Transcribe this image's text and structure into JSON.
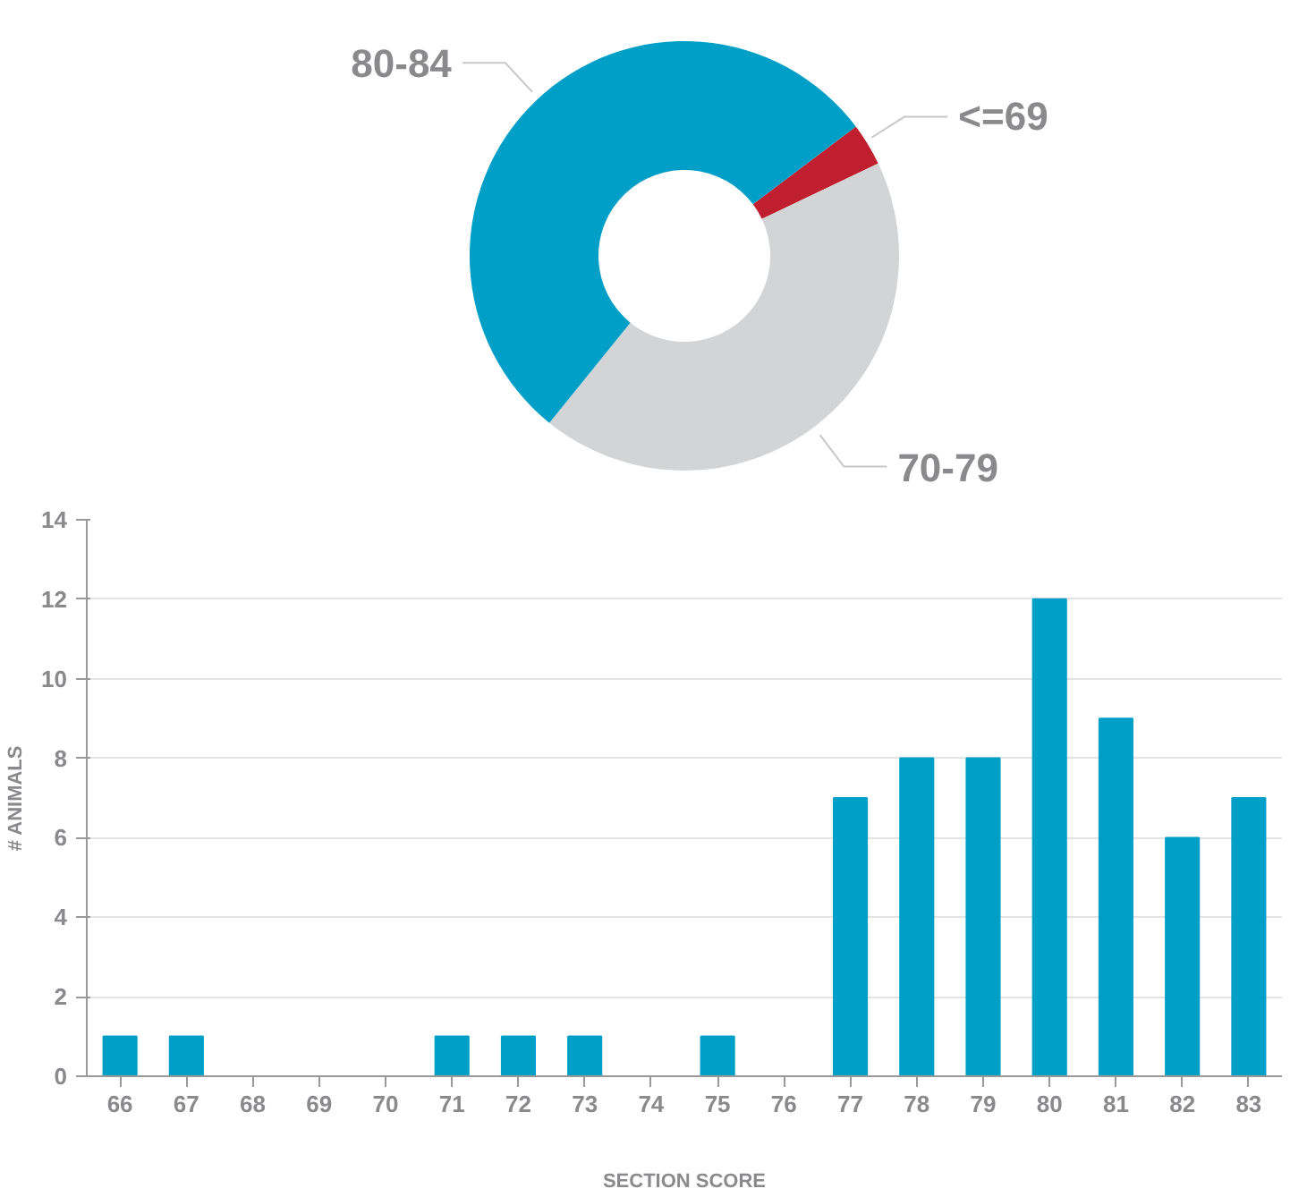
{
  "chart_data": [
    {
      "type": "donut",
      "categories": [
        "<=69",
        "70-79",
        "80-84"
      ],
      "values": [
        3.2,
        42.9,
        53.9
      ],
      "colors": [
        "#c01f2f",
        "#d3d4d6",
        "#009fc7"
      ]
    },
    {
      "type": "bar",
      "xlabel": "SECTION SCORE",
      "ylabel": "# ANIMALS",
      "categories": [
        "66",
        "67",
        "68",
        "69",
        "70",
        "71",
        "72",
        "73",
        "74",
        "75",
        "76",
        "77",
        "78",
        "79",
        "80",
        "81",
        "82",
        "83"
      ],
      "values": [
        1,
        1,
        0,
        0,
        0,
        1,
        1,
        1,
        0,
        1,
        0,
        7,
        8,
        8,
        12,
        9,
        6,
        7
      ],
      "color": "#009fc7",
      "ylim": [
        0,
        14
      ],
      "yticks": [
        0,
        2,
        4,
        6,
        8,
        10,
        12,
        14
      ],
      "grid": "y"
    }
  ]
}
